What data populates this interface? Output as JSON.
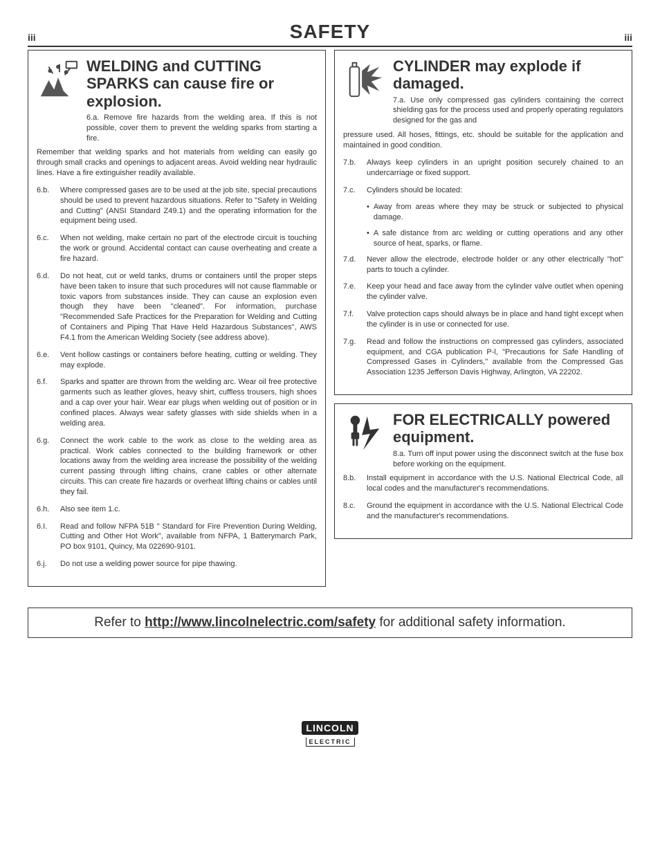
{
  "header": {
    "left": "iii",
    "title": "SAFETY",
    "right": "iii"
  },
  "left": {
    "title": "WELDING and CUTTING SPARKS can cause fire or explosion.",
    "first_num": "6.a.",
    "first": "Remove fire hazards from the welding area. If this is not possible, cover them to prevent the welding sparks from starting a fire.",
    "cont": "Remember that welding sparks and hot materials from welding can easily go through small cracks and openings to adjacent areas. Avoid welding near hydraulic lines. Have a fire extinguisher readily available.",
    "items": [
      {
        "n": "6.b.",
        "t": "Where compressed gases are to be used at the job site, special precautions should be used to prevent hazardous situations. Refer to \"Safety in Welding and Cutting\" (ANSI Standard Z49.1) and the operating information for the equipment being used."
      },
      {
        "n": "6.c.",
        "t": "When not welding, make certain no part of the electrode circuit is touching the work or ground. Accidental contact can cause overheating and create a fire hazard."
      },
      {
        "n": "6.d.",
        "t": "Do not heat, cut or weld tanks, drums or containers until the proper steps have been taken to insure that such procedures will not cause flammable or toxic vapors from substances inside. They can cause an explosion even though they have been \"cleaned\". For information, purchase \"Recommended Safe Practices for the Preparation for Welding and Cutting of Containers and Piping That Have Held Hazardous Substances\", AWS F4.1 from the American Welding Society (see address above)."
      },
      {
        "n": "6.e.",
        "t": "Vent hollow castings or containers before heating, cutting or welding. They may explode."
      },
      {
        "n": "6.f.",
        "t": "Sparks and spatter are thrown from the welding arc. Wear oil free protective garments such as leather gloves, heavy shirt, cuffless trousers, high shoes and a cap over your hair. Wear ear plugs when welding out of position or in confined places. Always wear safety glasses with side shields when in a welding area."
      },
      {
        "n": "6.g.",
        "t": "Connect the work cable to the work as close to the welding area as practical. Work cables connected to the building framework or other locations away from the welding area increase the possibility of the welding current passing through lifting chains, crane cables or other alternate circuits. This can create fire hazards or overheat lifting chains or cables until they fail."
      },
      {
        "n": "6.h.",
        "t": "Also see item 1.c."
      },
      {
        "n": "6.I.",
        "t": "Read and follow NFPA 51B \" Standard for Fire Prevention During Welding, Cutting and Other Hot Work\", available from NFPA, 1 Batterymarch Park, PO box 9101, Quincy, Ma 022690-9101."
      },
      {
        "n": "6.j.",
        "t": "Do not use a welding power source for pipe thawing."
      }
    ]
  },
  "cyl": {
    "title": "CYLINDER may explode if damaged.",
    "first_num": "7.a.",
    "first": "Use only compressed gas cylinders containing the correct shielding gas for the process used and properly operating regulators designed for the gas and",
    "cont": "pressure used. All hoses, fittings, etc. should be suitable for the application and maintained in good condition.",
    "items": [
      {
        "n": "7.b.",
        "t": "Always keep cylinders in an upright position securely chained to an undercarriage or fixed support."
      },
      {
        "n": "7.c.",
        "t": "Cylinders should be located:"
      }
    ],
    "sub": [
      {
        "t": "Away from areas where they may be struck or subjected to physical damage."
      },
      {
        "t": "A safe distance from arc welding or cutting operations and any other source of heat, sparks, or flame."
      }
    ],
    "items2": [
      {
        "n": "7.d.",
        "t": "Never allow the electrode, electrode holder or any other electrically \"hot\" parts to touch a cylinder."
      },
      {
        "n": "7.e.",
        "t": "Keep your head and face away from the cylinder valve outlet when opening the cylinder valve."
      },
      {
        "n": "7.f.",
        "t": "Valve protection caps should always be in place and hand tight except when the cylinder is in use or connected for use."
      },
      {
        "n": "7.g.",
        "t": "Read and follow the instructions on compressed gas cylinders, associated equipment, and CGA publication P-l, \"Precautions for Safe Handling of Compressed Gases in Cylinders,\" available from the Compressed Gas Association 1235 Jefferson Davis Highway, Arlington, VA 22202."
      }
    ]
  },
  "elec": {
    "title": "FOR ELECTRICALLY powered equipment.",
    "first_num": "8.a.",
    "first": "Turn off input power using the disconnect switch at the fuse box before working on the equipment.",
    "items": [
      {
        "n": "8.b.",
        "t": "Install equipment in accordance with the U.S. National Electrical Code, all local codes and the manufacturer's recommendations."
      },
      {
        "n": "8.c.",
        "t": "Ground the equipment in accordance with the U.S. National Electrical Code and the manufacturer's recommendations."
      }
    ]
  },
  "footer": {
    "pre": "Refer to ",
    "link": "http://www.lincolnelectric.com/safety",
    "post": " for additional safety information."
  },
  "logo": {
    "top": "LINCOLN",
    "bot": "ELECTRIC"
  }
}
